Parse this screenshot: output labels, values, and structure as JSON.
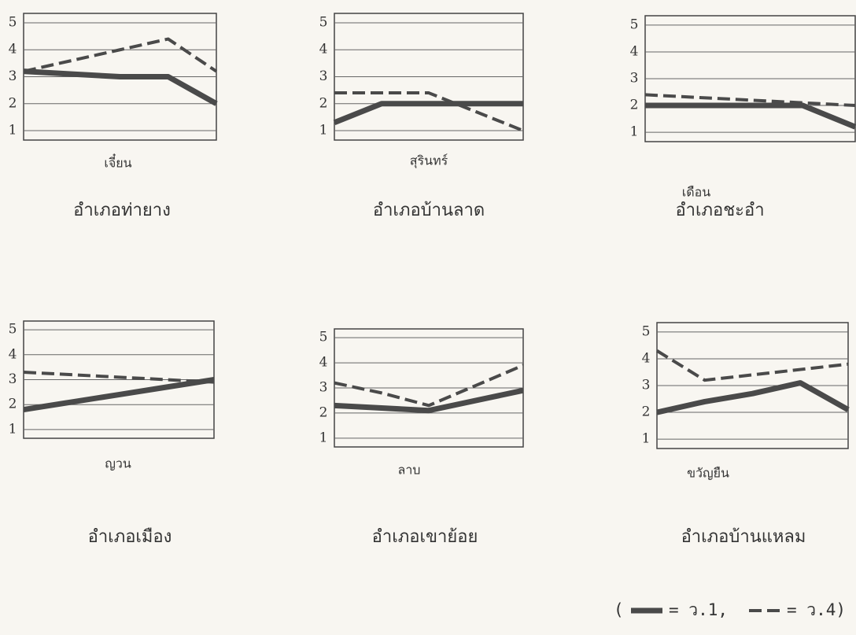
{
  "chart_data": [
    {
      "type": "line",
      "title": "อำเภอท่ายาง",
      "xlabel": "เจี๋ยน",
      "categories": [
        null,
        null,
        null,
        null,
        null
      ],
      "ylim": [
        0.65,
        5.35
      ],
      "yticks": [
        1,
        2,
        3,
        4,
        5
      ],
      "grid": true,
      "series": [
        {
          "color": "#4a4a4a",
          "style": "solid",
          "values": [
            3.2,
            3.1,
            3.0,
            3.0,
            2.0
          ]
        },
        {
          "color": "#4a4a4a",
          "style": "dashed",
          "values": [
            3.2,
            3.6,
            4.0,
            4.4,
            3.2
          ]
        }
      ]
    },
    {
      "type": "line",
      "title": "อำเภอบ้านลาด",
      "xlabel": "สุรินทร์",
      "categories": [
        null,
        null,
        null,
        null,
        null
      ],
      "ylim": [
        0.65,
        5.35
      ],
      "yticks": [
        1,
        2,
        3,
        4,
        5
      ],
      "grid": true,
      "series": [
        {
          "color": "#4a4a4a",
          "style": "solid",
          "values": [
            1.3,
            2.0,
            2.0,
            2.0,
            2.0
          ]
        },
        {
          "color": "#4a4a4a",
          "style": "dashed",
          "values": [
            2.4,
            2.4,
            2.4,
            1.7,
            1.0
          ]
        }
      ]
    },
    {
      "type": "line",
      "title": "อำเภอชะอำ",
      "xlabel": "เดือน",
      "categories": [
        null,
        null,
        null,
        null,
        null
      ],
      "ylim": [
        0.65,
        5.35
      ],
      "yticks": [
        1,
        2,
        3,
        4,
        5
      ],
      "grid": true,
      "series": [
        {
          "color": "#4a4a4a",
          "style": "solid",
          "values": [
            2.0,
            2.0,
            2.0,
            2.0,
            1.2
          ]
        },
        {
          "color": "#4a4a4a",
          "style": "dashed",
          "values": [
            2.4,
            2.3,
            2.2,
            2.1,
            2.0
          ]
        }
      ]
    },
    {
      "type": "line",
      "title": "อำเภอเมือง",
      "xlabel": "ญวน",
      "categories": [
        null,
        null,
        null,
        null,
        null
      ],
      "ylim": [
        0.65,
        5.35
      ],
      "yticks": [
        1,
        2,
        3,
        4,
        5
      ],
      "grid": true,
      "series": [
        {
          "color": "#4a4a4a",
          "style": "solid",
          "values": [
            1.8,
            2.1,
            2.4,
            2.7,
            3.0
          ]
        },
        {
          "color": "#4a4a4a",
          "style": "dashed",
          "values": [
            3.3,
            3.2,
            3.1,
            3.0,
            2.9
          ]
        }
      ]
    },
    {
      "type": "line",
      "title": "อำเภอเขาย้อย",
      "xlabel": "ลาบ",
      "categories": [
        null,
        null,
        null,
        null,
        null
      ],
      "ylim": [
        0.65,
        5.35
      ],
      "yticks": [
        1,
        2,
        3,
        4,
        5
      ],
      "grid": true,
      "series": [
        {
          "color": "#4a4a4a",
          "style": "solid",
          "values": [
            2.3,
            2.2,
            2.1,
            2.5,
            2.9
          ]
        },
        {
          "color": "#4a4a4a",
          "style": "dashed",
          "values": [
            3.2,
            2.8,
            2.3,
            3.1,
            3.9
          ]
        }
      ]
    },
    {
      "type": "line",
      "title": "อำเภอบ้านแหลม",
      "xlabel": "ขวัญยืน",
      "categories": [
        null,
        null,
        null,
        null,
        null
      ],
      "ylim": [
        0.65,
        5.35
      ],
      "yticks": [
        1,
        2,
        3,
        4,
        5
      ],
      "grid": true,
      "series": [
        {
          "color": "#4a4a4a",
          "style": "solid",
          "values": [
            2.0,
            2.4,
            2.7,
            3.1,
            2.1
          ]
        },
        {
          "color": "#4a4a4a",
          "style": "dashed",
          "values": [
            4.3,
            3.2,
            3.4,
            3.6,
            3.8
          ]
        }
      ]
    }
  ],
  "legend": {
    "open": "(",
    "items": [
      {
        "label": "= ว.1,",
        "style": "solid"
      },
      {
        "label": "= ว.4)",
        "style": "dashed"
      }
    ]
  }
}
